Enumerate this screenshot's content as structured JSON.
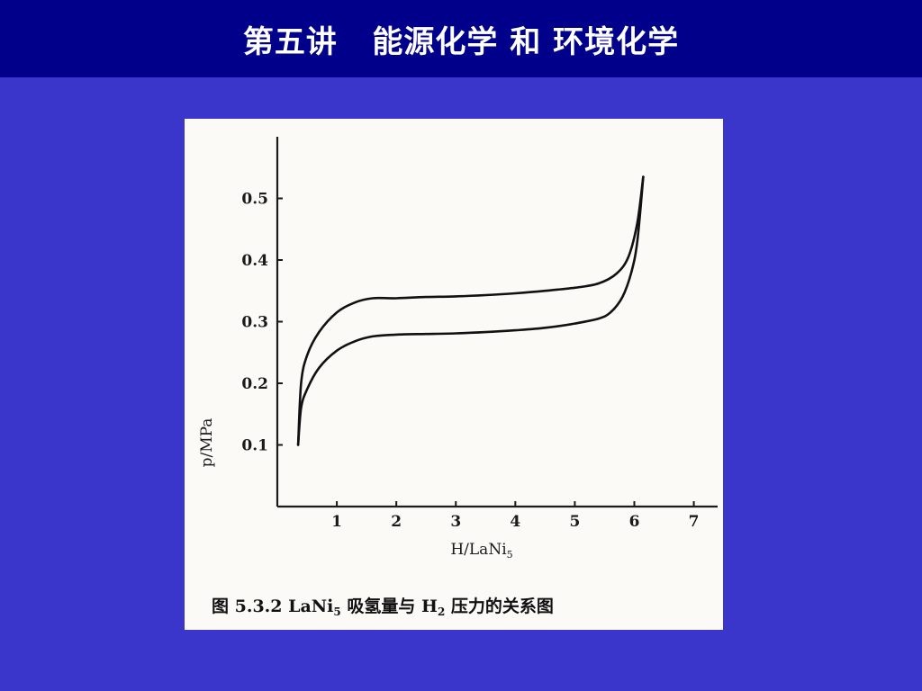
{
  "slide": {
    "title": "第五讲   能源化学 和 环境化学"
  },
  "figure": {
    "caption_parts": {
      "prefix": "图 5.3.2  LaNi",
      "sub1": "5",
      "middle": " 吸氢量与 H",
      "sub2": "2",
      "suffix": " 压力的关系图"
    }
  },
  "chart_data": {
    "type": "line",
    "xlabel_main": "H/LaNi",
    "xlabel_sub": "5",
    "ylabel": "p/MPa",
    "xticks": [
      "1",
      "2",
      "3",
      "4",
      "5",
      "6",
      "7"
    ],
    "yticks": [
      "0.1",
      "0.2",
      "0.3",
      "0.4",
      "0.5"
    ],
    "xlim": [
      0,
      7.4
    ],
    "ylim": [
      0,
      0.6
    ],
    "grid": false,
    "series": [
      {
        "x": [
          0.35,
          0.4,
          0.5,
          0.7,
          1.0,
          1.3,
          1.6,
          2.0,
          2.5,
          3.0,
          3.5,
          4.0,
          4.5,
          5.0,
          5.4,
          5.7,
          5.9,
          6.05,
          6.15
        ],
        "y": [
          0.1,
          0.2,
          0.245,
          0.283,
          0.315,
          0.331,
          0.338,
          0.338,
          0.34,
          0.341,
          0.343,
          0.346,
          0.35,
          0.355,
          0.362,
          0.378,
          0.405,
          0.46,
          0.535
        ]
      },
      {
        "x": [
          0.35,
          0.4,
          0.5,
          0.7,
          1.0,
          1.3,
          1.6,
          2.0,
          2.5,
          3.0,
          3.5,
          4.0,
          4.5,
          5.0,
          5.4,
          5.6,
          5.8,
          5.95,
          6.05,
          6.15
        ],
        "y": [
          0.1,
          0.16,
          0.19,
          0.225,
          0.253,
          0.268,
          0.276,
          0.279,
          0.28,
          0.281,
          0.283,
          0.286,
          0.29,
          0.297,
          0.305,
          0.315,
          0.34,
          0.38,
          0.43,
          0.535
        ]
      }
    ]
  }
}
